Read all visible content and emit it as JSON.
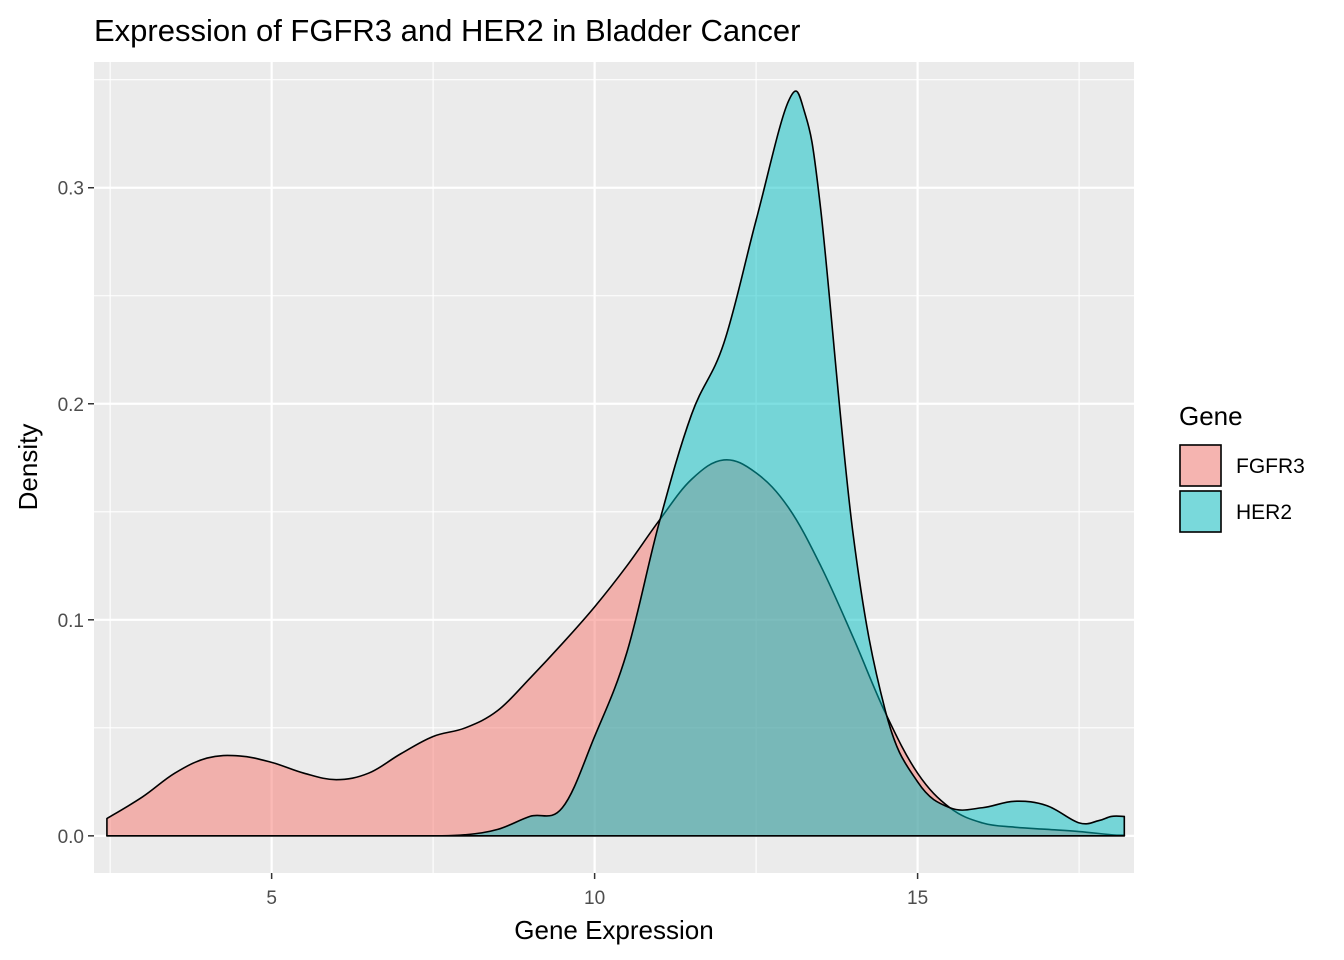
{
  "chart_data": {
    "type": "area",
    "title": "Expression of FGFR3 and HER2 in Bladder Cancer",
    "xlabel": "Gene Expression",
    "ylabel": "Density",
    "xlim": [
      2.25,
      18.35
    ],
    "ylim": [
      -0.0172,
      0.3582
    ],
    "x_ticks": [
      5,
      10,
      15
    ],
    "x_tick_labels": [
      "5",
      "10",
      "15"
    ],
    "y_ticks": [
      0.0,
      0.1,
      0.2,
      0.3
    ],
    "y_tick_labels": [
      "0.0",
      "0.1",
      "0.2",
      "0.3"
    ],
    "grid": true,
    "legend": {
      "title": "Gene",
      "position": "right"
    },
    "series": [
      {
        "name": "FGFR3",
        "color": "#F8766D",
        "x": [
          2.45,
          3.0,
          3.5,
          4.0,
          4.5,
          5.0,
          5.5,
          6.0,
          6.5,
          7.0,
          7.5,
          8.0,
          8.5,
          9.0,
          9.5,
          10.0,
          10.5,
          11.0,
          11.5,
          12.0,
          12.5,
          13.0,
          13.5,
          14.0,
          14.5,
          15.0,
          15.5,
          16.0,
          16.5,
          17.0,
          17.5,
          18.0,
          18.2
        ],
        "y": [
          0.008,
          0.018,
          0.029,
          0.036,
          0.037,
          0.034,
          0.029,
          0.026,
          0.029,
          0.038,
          0.046,
          0.05,
          0.058,
          0.073,
          0.089,
          0.106,
          0.125,
          0.146,
          0.165,
          0.174,
          0.168,
          0.152,
          0.125,
          0.092,
          0.057,
          0.029,
          0.013,
          0.006,
          0.004,
          0.003,
          0.002,
          0.0005,
          0.0003
        ]
      },
      {
        "name": "HER2",
        "color": "#00BFC4",
        "x": [
          2.45,
          4.0,
          6.0,
          7.5,
          8.0,
          8.5,
          9.0,
          9.5,
          10.0,
          10.5,
          11.0,
          11.5,
          12.0,
          12.5,
          13.0,
          13.25,
          13.5,
          14.0,
          14.5,
          15.0,
          15.5,
          16.0,
          16.5,
          17.0,
          17.5,
          17.8,
          18.0,
          18.2
        ],
        "y": [
          0.0,
          0.0,
          0.0,
          0.0,
          0.0005,
          0.003,
          0.009,
          0.013,
          0.046,
          0.085,
          0.145,
          0.195,
          0.228,
          0.285,
          0.34,
          0.335,
          0.29,
          0.14,
          0.058,
          0.025,
          0.013,
          0.013,
          0.016,
          0.014,
          0.006,
          0.007,
          0.009,
          0.009
        ]
      }
    ]
  }
}
